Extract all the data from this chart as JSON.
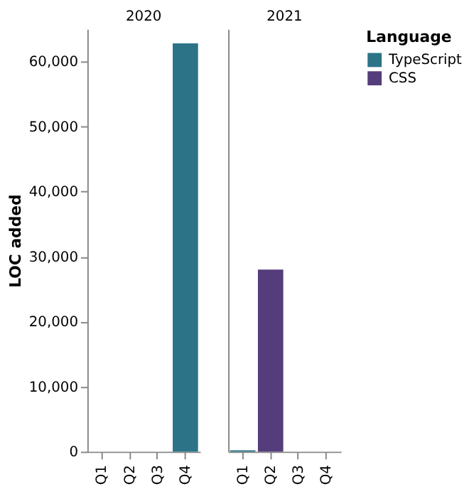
{
  "chart_data": [
    {
      "type": "bar",
      "title": "2020",
      "ylabel": "LOC added",
      "categories": [
        "Q1",
        "Q2",
        "Q3",
        "Q4"
      ],
      "ylim": [
        0,
        65000
      ],
      "grid": false,
      "yticks": [
        0,
        {
          "value": 10000,
          "label": "10,000"
        },
        {
          "value": 20000,
          "label": "20,000"
        },
        {
          "value": 30000,
          "label": "30,000"
        },
        {
          "value": 40000,
          "label": "40,000"
        },
        {
          "value": 50000,
          "label": "50,000"
        },
        {
          "value": 60000,
          "label": "60,000"
        }
      ],
      "series": [
        {
          "color": "#2c7388",
          "values": [
            null,
            null,
            null,
            62800
          ]
        }
      ]
    },
    {
      "type": "bar",
      "title": "2021",
      "categories": [
        "Q1",
        "Q2",
        "Q3",
        "Q4"
      ],
      "ylim": [
        0,
        65000
      ],
      "tick_labels": "x",
      "grid": false,
      "legend": "right",
      "legend_title": "Language",
      "series": [
        {
          "name": "TypeScript",
          "color": "#2c7388",
          "values": [
            200,
            null,
            null,
            null
          ]
        },
        {
          "name": "CSS",
          "color": "#553d7b",
          "values": [
            null,
            28000,
            null,
            null
          ]
        }
      ]
    }
  ]
}
